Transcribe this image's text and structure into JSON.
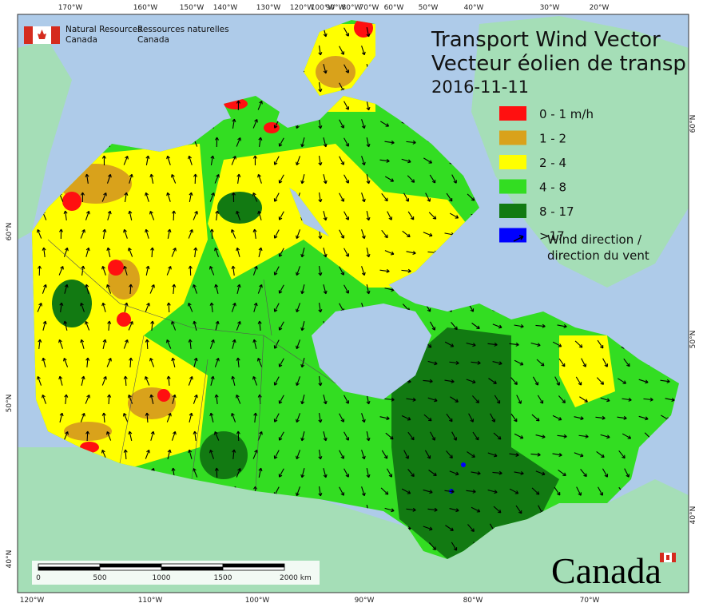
{
  "header": {
    "agency_en": [
      "Natural Resources",
      "Canada"
    ],
    "agency_fr": [
      "Ressources naturelles",
      "Canada"
    ]
  },
  "title": {
    "line1": "Transport Wind Vector",
    "line2": "Vecteur éolien de transp",
    "date": "2016-11-11"
  },
  "legend": {
    "items": [
      {
        "label": "0 - 1 m/h",
        "color": "#ff1010"
      },
      {
        "label": "1 - 2",
        "color": "#d9a21b"
      },
      {
        "label": "2 - 4",
        "color": "#ffff00"
      },
      {
        "label": "4 - 8",
        "color": "#33dd22"
      },
      {
        "label": "8 - 17",
        "color": "#127a12"
      },
      {
        "label": ">17",
        "color": "#0000ff"
      }
    ],
    "wind": [
      "Wind direction /",
      "direction du vent"
    ]
  },
  "graticule": {
    "top": [
      "170°W",
      "160°W",
      "150°W",
      "140°W",
      "130°W",
      "120°W",
      "100°W",
      "90°W",
      "80°W",
      "70°W",
      "60°W",
      "50°W",
      "40°W",
      "30°W",
      "20°W"
    ],
    "bottom": [
      "120°W",
      "110°W",
      "100°W",
      "90°W",
      "80°W",
      "70°W"
    ],
    "left": [
      "60°N",
      "50°N",
      "40°N"
    ],
    "right": [
      "60°N",
      "50°N",
      "40°N"
    ]
  },
  "scale_bar": {
    "labels": [
      "0",
      "500",
      "1000",
      "1500",
      "2000 km"
    ]
  },
  "wordmark": "Canada"
}
